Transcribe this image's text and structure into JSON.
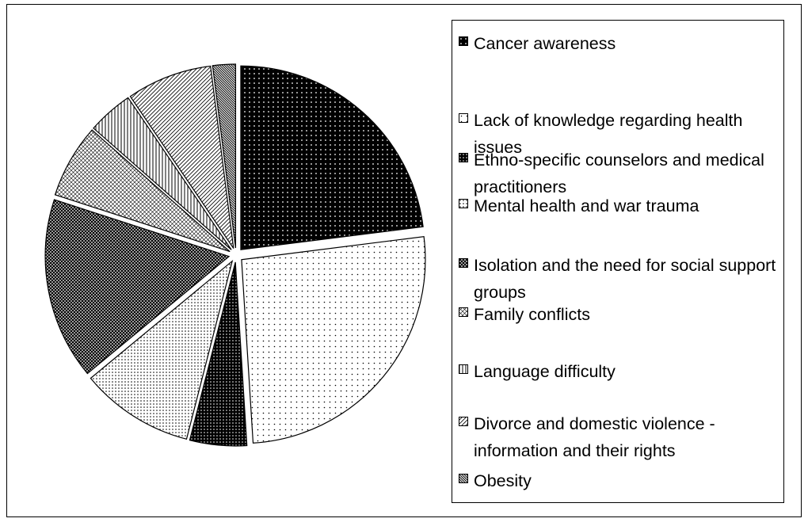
{
  "chart_data": {
    "type": "pie",
    "categories": [
      "Cancer awareness",
      "Lack of knowledge regarding health issues",
      "Ethno-specific counselors and medical practitioners",
      "Mental health and war trauma",
      "Isolation and the need for social support groups",
      "Family conflicts",
      "Language difficulty",
      "Divorce and domestic violence - information and their rights",
      "Obesity"
    ],
    "values": [
      23,
      26,
      5,
      10,
      16,
      6.5,
      4,
      7.5,
      2
    ],
    "legend": "right"
  }
}
